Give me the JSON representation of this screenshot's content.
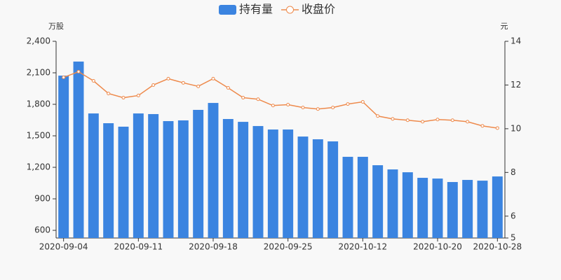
{
  "chart_data": {
    "type": "bar_line",
    "y_label": "万股",
    "y2_label": "元",
    "categories": [
      "2020-09-04",
      null,
      null,
      null,
      null,
      "2020-09-11",
      null,
      null,
      null,
      null,
      "2020-09-18",
      null,
      null,
      null,
      null,
      "2020-09-25",
      null,
      null,
      null,
      null,
      "2020-10-12",
      null,
      null,
      null,
      null,
      "2020-10-20",
      null,
      null,
      null,
      "2020-10-28"
    ],
    "series": [
      {
        "name": "持有量",
        "type": "bar",
        "color": "#3b84e0",
        "values": [
          2073,
          2207,
          1713,
          1620,
          1587,
          1713,
          1707,
          1640,
          1647,
          1747,
          1813,
          1660,
          1633,
          1593,
          1560,
          1560,
          1493,
          1467,
          1447,
          1300,
          1300,
          1220,
          1180,
          1153,
          1100,
          1093,
          1060,
          1080,
          1073,
          1113
        ]
      },
      {
        "name": "收盘价",
        "type": "line",
        "axis": "y2",
        "color": "#ee8a4c",
        "values": [
          12.35,
          12.61,
          12.19,
          11.61,
          11.42,
          11.52,
          12.0,
          12.29,
          12.1,
          11.94,
          12.29,
          11.87,
          11.42,
          11.35,
          11.06,
          11.1,
          10.97,
          10.9,
          10.97,
          11.13,
          11.23,
          10.58,
          10.45,
          10.39,
          10.32,
          10.42,
          10.39,
          10.32,
          10.13,
          10.03
        ]
      }
    ],
    "ylim": [
      527,
      2400
    ],
    "yticks": [
      600,
      900,
      {
        "value": 1200,
        "label": "1,200"
      },
      {
        "value": 1500,
        "label": "1,500"
      },
      {
        "value": 1800,
        "label": "1,800"
      },
      {
        "value": 2100,
        "label": "2,100"
      },
      {
        "value": 2400,
        "label": "2,400"
      }
    ],
    "y2lim": [
      5,
      14
    ],
    "y2ticks": [
      5,
      6,
      8,
      10,
      12,
      14
    ],
    "legend": "top"
  }
}
